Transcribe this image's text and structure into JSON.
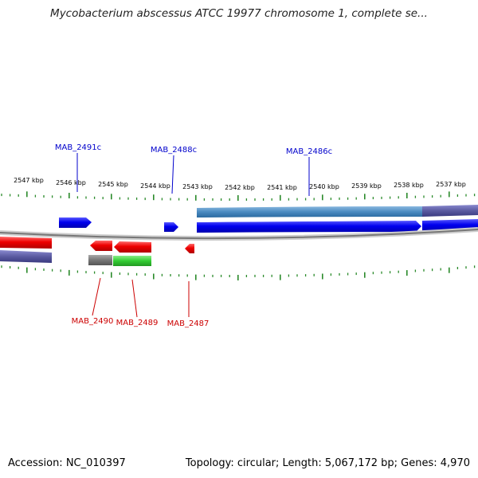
{
  "title": "Mycobacterium abscessus ATCC 19977 chromosome 1, complete se...",
  "footer": {
    "accession": "Accession: NC_010397",
    "summary": "Topology: circular; Length: 5,067,172 bp; Genes: 4,970"
  },
  "ruler_labels": [
    "2547 kbp",
    "2546 kbp",
    "2545 kbp",
    "2544 kbp",
    "2543 kbp",
    "2542 kbp",
    "2541 kbp",
    "2540 kbp",
    "2539 kbp",
    "2538 kbp",
    "2537 kbp"
  ],
  "genes_top": [
    "MAB_2491c",
    "MAB_2488c",
    "MAB_2486c"
  ],
  "genes_bottom": [
    "MAB_2490",
    "MAB_2489",
    "MAB_2487"
  ],
  "colors": {
    "plus_strand_cds": "#0000ee",
    "minus_strand_cds": "#ee0000",
    "plus_label": "#0000cc",
    "minus_label": "#cc0000",
    "backbone": "#888888",
    "tick": "#2a8a2a",
    "feature_teal": "#4a8ac0",
    "feature_purple": "#5a5aa0",
    "feature_green": "#33cc33",
    "feature_gray": "#777777"
  }
}
